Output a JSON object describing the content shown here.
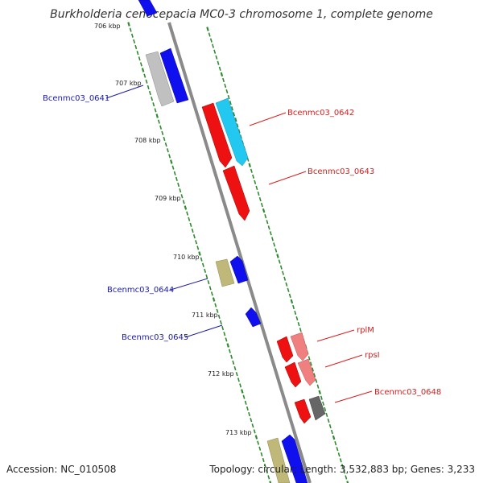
{
  "title": "Burkholderia cenocepacia MC0-3 chromosome 1, complete genome",
  "footer": {
    "accession": "Accession: NC_010508",
    "stats": "Topology: circular; Length: 3,532,883 bp; Genes: 3,233"
  },
  "ruler": {
    "labels": [
      "706 kbp",
      "707 kbp",
      "708 kbp",
      "709 kbp",
      "710 kbp",
      "711 kbp",
      "712 kbp",
      "713 kbp"
    ]
  },
  "gene_labels": [
    {
      "name": "Bcenmc03_0641",
      "color": "#1a1aa8"
    },
    {
      "name": "Bcenmc03_0642",
      "color": "#d81e1e"
    },
    {
      "name": "Bcenmc03_0643",
      "color": "#d81e1e"
    },
    {
      "name": "Bcenmc03_0644",
      "color": "#1a1aa8"
    },
    {
      "name": "Bcenmc03_0645",
      "color": "#1a1aa8"
    },
    {
      "name": "rplM",
      "color": "#d81e1e"
    },
    {
      "name": "rpsI",
      "color": "#d81e1e"
    },
    {
      "name": "Bcenmc03_0648",
      "color": "#d81e1e"
    }
  ],
  "colors": {
    "backbone": "#8a8a8a",
    "ruler_dots": "#2e8b2e",
    "red": "#ee1111",
    "pink": "#f08080",
    "blue": "#1010ee",
    "cyan": "#22c8f0",
    "gray_light": "#c0c0c0",
    "khaki": "#bfb878",
    "dark_gray": "#666666"
  }
}
